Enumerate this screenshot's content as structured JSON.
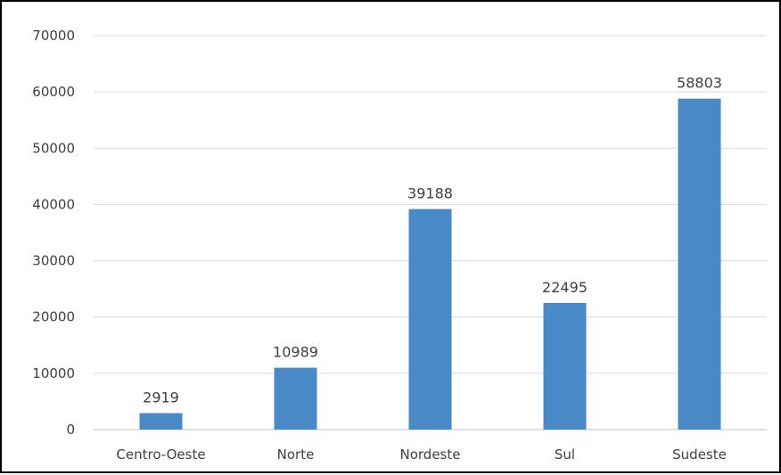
{
  "chart_data": {
    "type": "bar",
    "categories": [
      "Centro-Oeste",
      "Norte",
      "Nordeste",
      "Sul",
      "Sudeste"
    ],
    "values": [
      2919,
      10989,
      39188,
      22495,
      58803
    ],
    "ylim": [
      0,
      70000
    ],
    "yticks": [
      0,
      10000,
      20000,
      30000,
      40000,
      50000,
      60000,
      70000
    ],
    "grid": true,
    "legend": "none",
    "bar_color": "#4a89c8",
    "data_labels": [
      "2919",
      "10989",
      "39188",
      "22495",
      "58803"
    ]
  }
}
